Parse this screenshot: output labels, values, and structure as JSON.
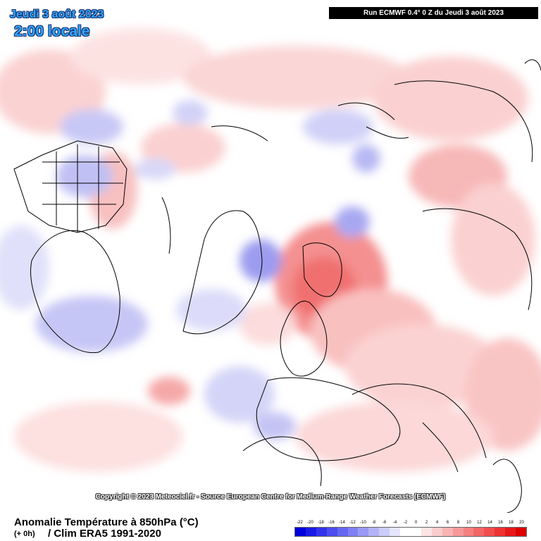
{
  "header": {
    "date": "Jeudi 3 août 2023",
    "time": "2:00 locale",
    "run_info": "Run ECMWF 0.4° 0 Z du Jeudi 3 août 2023"
  },
  "map": {
    "copyright": "Copyright © 2023 Meteociel.fr - Source European Centre for Medium-Range Weather Forecasts (ECMWF)"
  },
  "footer": {
    "title": "Anomalie Température à 850hPa (°C)",
    "lead": "(+ 0h)",
    "clim": "/ Clim ERA5 1991-2020"
  },
  "legend": {
    "ticks": [
      "-22",
      "-20",
      "-18",
      "-16",
      "-14",
      "-12",
      "-10",
      "-8",
      "-6",
      "-4",
      "-2",
      "0",
      "2",
      "4",
      "6",
      "8",
      "10",
      "12",
      "14",
      "16",
      "18",
      "20"
    ],
    "colors": [
      "#0000dd",
      "#1a1ae6",
      "#3333ee",
      "#4d4df0",
      "#6666f2",
      "#7f7ff4",
      "#9999f6",
      "#b3b3f8",
      "#ccccfa",
      "#e5e5fc",
      "#ffffff",
      "#ffffff",
      "#fde5e5",
      "#fbcccc",
      "#f9b3b3",
      "#f79999",
      "#f57f7f",
      "#f36666",
      "#f14d4d",
      "#ee3333",
      "#e61a1a",
      "#dd0000"
    ]
  }
}
